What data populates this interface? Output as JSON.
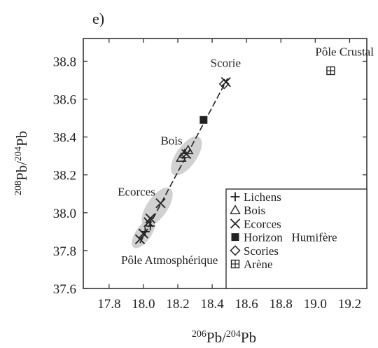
{
  "chart_data": {
    "type": "scatter",
    "panel_label": "e)",
    "xlabel": {
      "sup": "206",
      "base": "Pb/",
      "sup2": "204",
      "base2": "Pb"
    },
    "ylabel": {
      "sup": "208",
      "base": "Pb/",
      "sup2": "204",
      "base2": "Pb"
    },
    "xlim": [
      17.65,
      19.3
    ],
    "ylim": [
      37.6,
      38.92
    ],
    "xticks": [
      17.8,
      18.0,
      18.2,
      18.4,
      18.6,
      18.8,
      19.0,
      19.2
    ],
    "yticks": [
      37.6,
      37.8,
      38.0,
      38.2,
      38.4,
      38.6,
      38.8
    ],
    "xtick_labels": [
      "17.8",
      "18.0",
      "18.2",
      "18.4",
      "18.6",
      "18.8",
      "19.0",
      "19.2"
    ],
    "ytick_labels": [
      "37.6",
      "37.8",
      "38.0",
      "38.2",
      "38.4",
      "38.6",
      "38.8"
    ],
    "grid": false,
    "legend_position": "bottom-right",
    "series": [
      {
        "name": "Lichens",
        "marker": "plus",
        "points": [
          [
            18.01,
            37.9
          ],
          [
            18.04,
            37.93
          ]
        ]
      },
      {
        "name": "Bois",
        "marker": "triangle",
        "points": [
          [
            18.22,
            38.29
          ],
          [
            18.24,
            38.31
          ],
          [
            18.26,
            38.33
          ]
        ]
      },
      {
        "name": "Ecorces",
        "marker": "x",
        "points": [
          [
            17.98,
            37.86
          ],
          [
            18.0,
            37.89
          ],
          [
            18.03,
            37.95
          ],
          [
            18.04,
            37.97
          ],
          [
            18.1,
            38.05
          ],
          [
            18.25,
            38.31
          ],
          [
            18.48,
            38.69
          ]
        ]
      },
      {
        "name": "Horizon   Humifère",
        "marker": "square-filled",
        "points": [
          [
            18.35,
            38.49
          ]
        ]
      },
      {
        "name": "Scories",
        "marker": "diamond",
        "points": [
          [
            18.47,
            38.68
          ]
        ]
      },
      {
        "name": "Arène",
        "marker": "boxplus",
        "points": [
          [
            19.09,
            38.75
          ]
        ]
      }
    ],
    "trend_line": {
      "style": "dashed",
      "from": [
        17.98,
        37.84
      ],
      "to": [
        18.49,
        38.71
      ]
    },
    "shaded_groups": [
      {
        "label": "Pôle Atmosphérique",
        "center": [
          18.0,
          37.89
        ],
        "extent": [
          0.025,
          0.09
        ]
      },
      {
        "label": "Ecorces",
        "center": [
          18.08,
          38.03
        ],
        "extent": [
          0.04,
          0.12
        ]
      },
      {
        "label": "Bois",
        "center": [
          18.25,
          38.3
        ],
        "extent": [
          0.05,
          0.12
        ]
      }
    ],
    "annotations": [
      {
        "text": "Scorie",
        "at": [
          18.39,
          38.77
        ]
      },
      {
        "text": "Pôle Crustal",
        "at": [
          19.0,
          38.83
        ]
      },
      {
        "text": "Bois",
        "at": [
          18.1,
          38.36
        ]
      },
      {
        "text": "Ecorces",
        "at": [
          17.85,
          38.09
        ]
      },
      {
        "text": "Pôle Atmosphérique",
        "at": [
          17.87,
          37.73
        ]
      }
    ]
  }
}
